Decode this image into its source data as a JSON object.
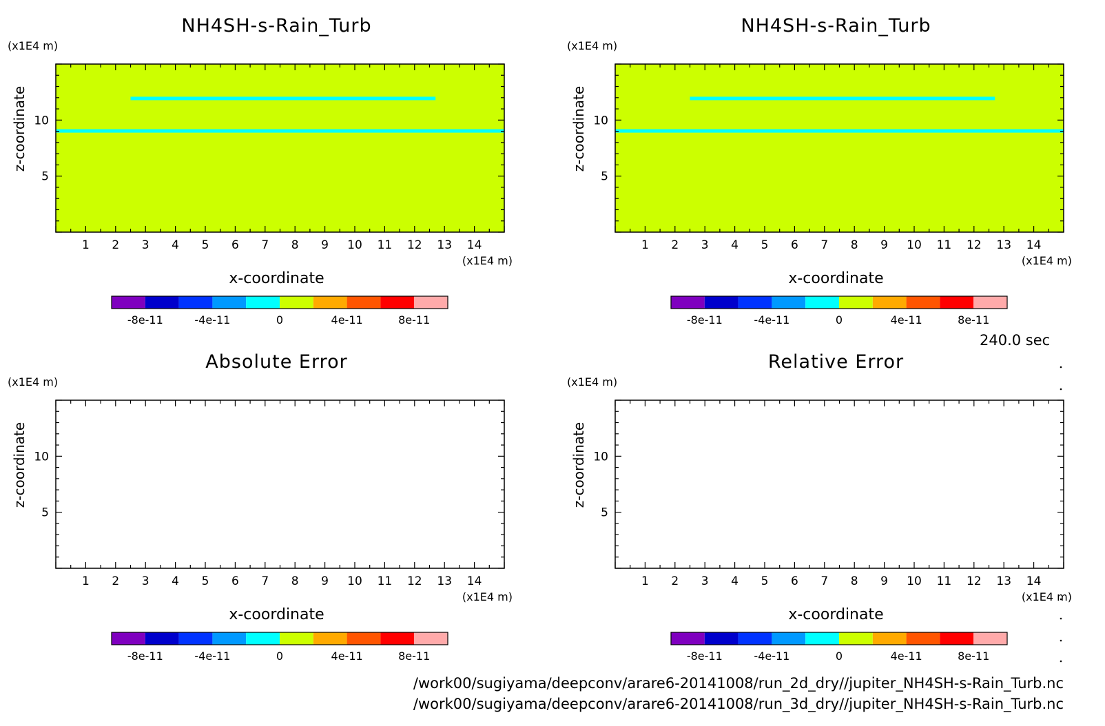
{
  "time_label": "240.0 sec",
  "file_paths": [
    "/work00/sugiyama/deepconv/arare6-20141008/run_2d_dry//jupiter_NH4SH-s-Rain_Turb.nc",
    "/work00/sugiyama/deepconv/arare6-20141008/run_3d_dry//jupiter_NH4SH-s-Rain_Turb.nc"
  ],
  "colorbar": {
    "colors": [
      "#7f00bf",
      "#0000cc",
      "#0033ff",
      "#0099ff",
      "#00ffff",
      "#ccff00",
      "#ffaa00",
      "#ff5500",
      "#ff0000",
      "#ffaaaa"
    ],
    "tick_values": [
      -8e-11,
      -4e-11,
      0,
      4e-11,
      8e-11
    ],
    "tick_labels": [
      "-8e-11",
      "-4e-11",
      "0",
      "4e-11",
      "8e-11"
    ],
    "range": [
      -1e-10,
      1e-10
    ]
  },
  "chart_data": [
    {
      "type": "heatmap",
      "title": "NH4SH-s-Rain_Turb",
      "xlabel": "x-coordinate",
      "ylabel": "z-coordinate",
      "x_unit": "(x1E4 m)",
      "y_unit": "(x1E4 m)",
      "xlim": [
        0,
        15
      ],
      "ylim": [
        0,
        15
      ],
      "x_ticks": [
        1,
        2,
        3,
        4,
        5,
        6,
        7,
        8,
        9,
        10,
        11,
        12,
        13,
        14
      ],
      "y_ticks": [
        5,
        10
      ],
      "background_color": "#ccff00",
      "features": [
        {
          "color": "#00ffff",
          "z": 11.9,
          "x_range": [
            2.5,
            12.7
          ]
        },
        {
          "color": "#00ffff",
          "z": 9.0,
          "x_range": [
            0,
            15
          ]
        }
      ]
    },
    {
      "type": "heatmap",
      "title": "NH4SH-s-Rain_Turb",
      "xlabel": "x-coordinate",
      "ylabel": "z-coordinate",
      "x_unit": "(x1E4 m)",
      "y_unit": "(x1E4 m)",
      "xlim": [
        0,
        15
      ],
      "ylim": [
        0,
        15
      ],
      "x_ticks": [
        1,
        2,
        3,
        4,
        5,
        6,
        7,
        8,
        9,
        10,
        11,
        12,
        13,
        14
      ],
      "y_ticks": [
        5,
        10
      ],
      "background_color": "#ccff00",
      "features": [
        {
          "color": "#00ffff",
          "z": 11.9,
          "x_range": [
            2.5,
            12.7
          ]
        },
        {
          "color": "#00ffff",
          "z": 9.0,
          "x_range": [
            0,
            15
          ]
        }
      ]
    },
    {
      "type": "heatmap",
      "title": "Absolute Error",
      "xlabel": "x-coordinate",
      "ylabel": "z-coordinate",
      "x_unit": "(x1E4 m)",
      "y_unit": "(x1E4 m)",
      "xlim": [
        0,
        15
      ],
      "ylim": [
        0,
        15
      ],
      "x_ticks": [
        1,
        2,
        3,
        4,
        5,
        6,
        7,
        8,
        9,
        10,
        11,
        12,
        13,
        14
      ],
      "y_ticks": [
        5,
        10
      ],
      "background_color": "#ffffff",
      "features": []
    },
    {
      "type": "heatmap",
      "title": "Relative Error",
      "xlabel": "x-coordinate",
      "ylabel": "z-coordinate",
      "x_unit": "(x1E4 m)",
      "y_unit": "(x1E4 m)",
      "xlim": [
        0,
        15
      ],
      "ylim": [
        0,
        15
      ],
      "x_ticks": [
        1,
        2,
        3,
        4,
        5,
        6,
        7,
        8,
        9,
        10,
        11,
        12,
        13,
        14
      ],
      "y_ticks": [
        5,
        10
      ],
      "background_color": "#ffffff",
      "features": []
    }
  ]
}
